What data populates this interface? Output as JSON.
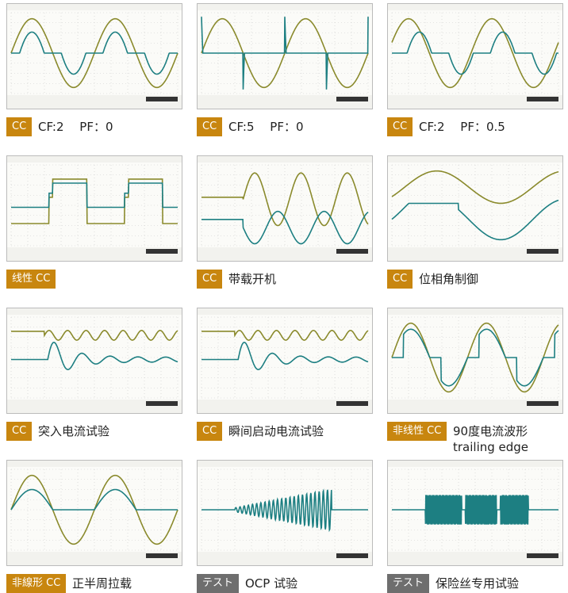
{
  "panels": [
    {
      "tag": "CC",
      "tag_color": "#c8860f",
      "caption": [
        "CF:2　 PF：0"
      ]
    },
    {
      "tag": "CC",
      "tag_color": "#c8860f",
      "caption": [
        "CF:5　 PF：0"
      ]
    },
    {
      "tag": "CC",
      "tag_color": "#c8860f",
      "caption": [
        "CF:2　 PF：0.5"
      ]
    },
    {
      "tag": "线性 CC",
      "tag_color": "#c8860f",
      "caption": []
    },
    {
      "tag": "CC",
      "tag_color": "#c8860f",
      "caption": [
        "带载开机"
      ]
    },
    {
      "tag": "CC",
      "tag_color": "#c8860f",
      "caption": [
        "位相角制御"
      ]
    },
    {
      "tag": "CC",
      "tag_color": "#c8860f",
      "caption": [
        "突入电流试验"
      ]
    },
    {
      "tag": "CC",
      "tag_color": "#c8860f",
      "caption": [
        "瞬间启动电流试验"
      ]
    },
    {
      "tag": "非线性 CC",
      "tag_color": "#c8860f",
      "caption": [
        "90度电流波形",
        "trailing edge"
      ]
    },
    {
      "tag": "非線形 CC",
      "tag_color": "#c8860f",
      "caption": [
        "正半周拉载"
      ]
    },
    {
      "tag": "テスト",
      "tag_color": "#6e6e6e",
      "caption": [
        "OCP 试验"
      ]
    },
    {
      "tag": "テスト",
      "tag_color": "#6e6e6e",
      "caption": [
        "保险丝专用试验"
      ]
    }
  ]
}
